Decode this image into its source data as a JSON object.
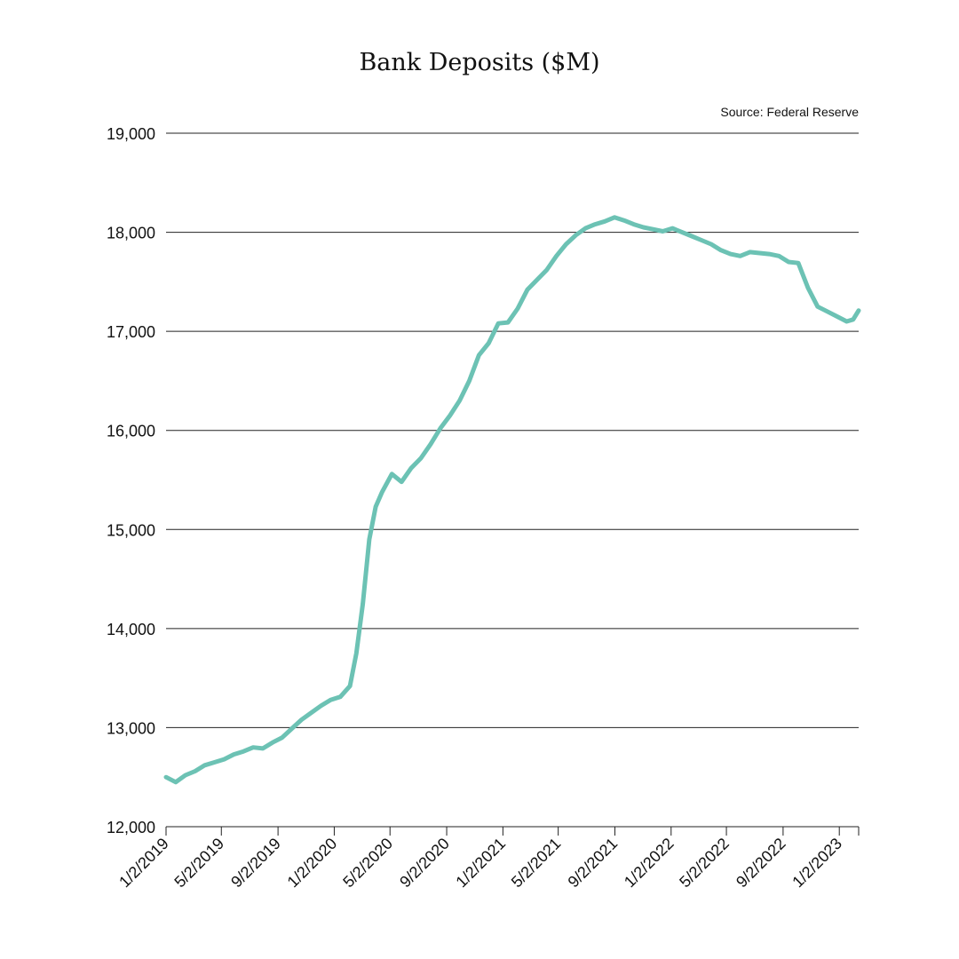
{
  "chart_data": {
    "type": "line",
    "title": "Bank Deposits ($M)",
    "source": "Source: Federal Reserve",
    "xlabel": "",
    "ylabel": "",
    "ylim": [
      12000,
      19000
    ],
    "yticks": [
      12000,
      13000,
      14000,
      15000,
      16000,
      17000,
      18000,
      19000
    ],
    "ytick_labels": [
      "12,000",
      "13,000",
      "14,000",
      "15,000",
      "16,000",
      "17,000",
      "18,000",
      "19,000"
    ],
    "xlim": [
      "2019-01-02",
      "2023-02-13"
    ],
    "xticks": [
      "2019-01-02",
      "2019-05-02",
      "2019-09-02",
      "2020-01-02",
      "2020-05-02",
      "2020-09-02",
      "2021-01-02",
      "2021-05-02",
      "2021-09-02",
      "2022-01-02",
      "2022-05-02",
      "2022-09-02",
      "2023-01-02"
    ],
    "xtick_labels": [
      "1/2/2019",
      "5/2/2019",
      "9/2/2019",
      "1/2/2020",
      "5/2/2020",
      "9/2/2020",
      "1/2/2021",
      "5/2/2021",
      "9/2/2021",
      "1/2/2022",
      "5/2/2022",
      "9/2/2022",
      "1/2/2023"
    ],
    "grid": "horizontal",
    "line_color": "#6cc2b4",
    "series": [
      {
        "x": [
          "2019-01-02",
          "2019-01-23",
          "2019-02-13",
          "2019-03-06",
          "2019-03-27",
          "2019-04-17",
          "2019-05-08",
          "2019-05-29",
          "2019-06-19",
          "2019-07-10",
          "2019-07-31",
          "2019-08-21",
          "2019-09-11",
          "2019-10-02",
          "2019-10-23",
          "2019-11-13",
          "2019-12-04",
          "2019-12-25",
          "2020-01-15",
          "2020-02-05",
          "2020-02-19",
          "2020-03-04",
          "2020-03-18",
          "2020-04-01",
          "2020-04-15",
          "2020-05-06",
          "2020-05-27",
          "2020-06-17",
          "2020-07-08",
          "2020-07-29",
          "2020-08-19",
          "2020-09-09",
          "2020-09-30",
          "2020-10-21",
          "2020-11-11",
          "2020-12-02",
          "2020-12-23",
          "2021-01-13",
          "2021-02-03",
          "2021-02-24",
          "2021-03-17",
          "2021-04-07",
          "2021-04-28",
          "2021-05-19",
          "2021-06-09",
          "2021-06-30",
          "2021-07-21",
          "2021-08-11",
          "2021-09-01",
          "2021-09-22",
          "2021-10-13",
          "2021-11-03",
          "2021-11-24",
          "2021-12-15",
          "2022-01-05",
          "2022-01-26",
          "2022-02-16",
          "2022-03-09",
          "2022-03-30",
          "2022-04-20",
          "2022-05-11",
          "2022-06-01",
          "2022-06-22",
          "2022-07-13",
          "2022-08-03",
          "2022-08-24",
          "2022-09-14",
          "2022-10-05",
          "2022-10-26",
          "2022-11-16",
          "2022-12-07",
          "2022-12-28",
          "2023-01-18",
          "2023-02-01",
          "2023-02-13"
        ],
        "values": [
          12500,
          12450,
          12520,
          12560,
          12620,
          12650,
          12680,
          12730,
          12760,
          12800,
          12790,
          12850,
          12900,
          12990,
          13080,
          13150,
          13220,
          13280,
          13310,
          13420,
          13750,
          14250,
          14900,
          15230,
          15380,
          15560,
          15480,
          15620,
          15720,
          15860,
          16020,
          16150,
          16300,
          16500,
          16760,
          16880,
          17080,
          17090,
          17230,
          17420,
          17520,
          17620,
          17760,
          17880,
          17970,
          18040,
          18080,
          18110,
          18150,
          18120,
          18080,
          18050,
          18030,
          18010,
          18040,
          18000,
          17960,
          17920,
          17880,
          17820,
          17780,
          17760,
          17800,
          17790,
          17780,
          17760,
          17700,
          17690,
          17440,
          17250,
          17200,
          17150,
          17100,
          17120,
          17210
        ]
      }
    ]
  }
}
